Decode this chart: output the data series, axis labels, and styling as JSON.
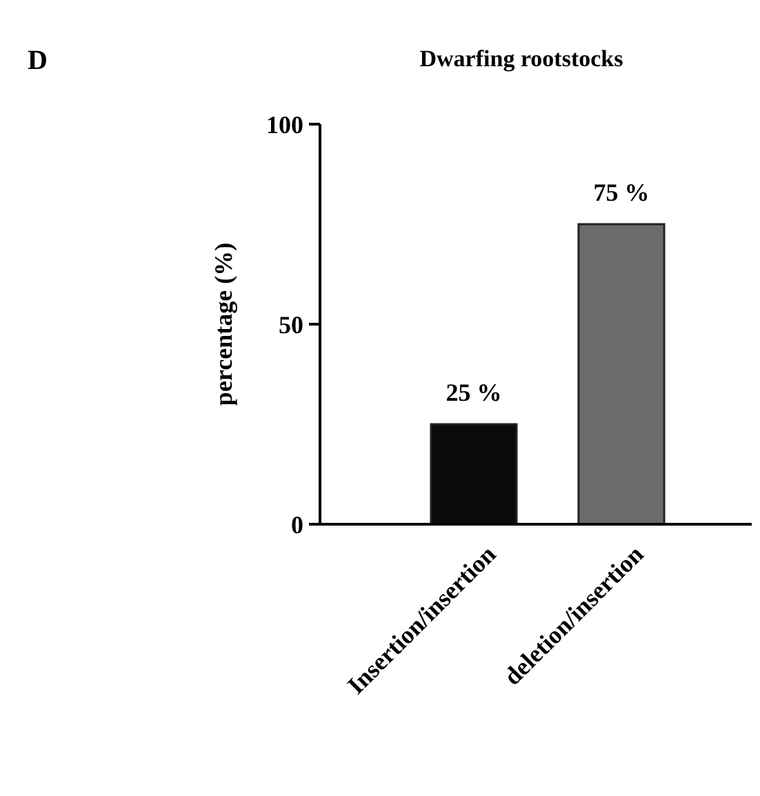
{
  "chart_data": {
    "type": "bar",
    "title": "Dwarfing rootstocks",
    "ylabel": "percentage (%)",
    "annotations": [
      "D"
    ],
    "categories": [
      "Insertion/insertion",
      "deletion/insertion"
    ],
    "values": [
      25,
      75
    ],
    "colors": [
      "#0a0a0a",
      "#6b6b6b"
    ],
    "value_labels": [
      "25 %",
      "75 %"
    ],
    "ylim": [
      0,
      100
    ],
    "yticks": [
      0,
      50,
      100
    ],
    "grid": false
  }
}
